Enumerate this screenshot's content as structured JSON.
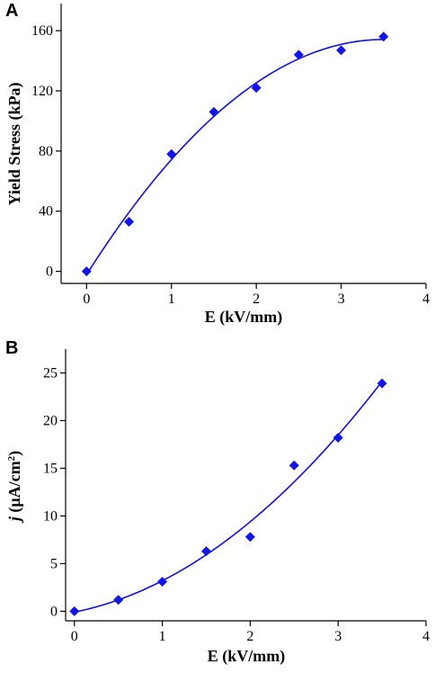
{
  "chart_data": [
    {
      "type": "scatter",
      "panel_label": "A",
      "title": "",
      "xlabel": "E (kV/mm)",
      "ylabel": "Yield Stress (kPa)",
      "xlim": [
        -0.3,
        4
      ],
      "ylim": [
        -8,
        178
      ],
      "x_ticks": [
        0,
        1,
        2,
        3,
        4
      ],
      "y_ticks": [
        0,
        40,
        80,
        120,
        160
      ],
      "series": [
        {
          "x": [
            0,
            0.5,
            1,
            1.5,
            2,
            2.5,
            3,
            3.5
          ],
          "y": [
            0,
            33,
            78,
            106,
            122,
            144,
            147,
            156
          ],
          "marker": "diamond",
          "color": "#1414e6"
        }
      ],
      "fit_line": true,
      "grid": false
    },
    {
      "type": "scatter",
      "panel_label": "B",
      "title": "",
      "xlabel": "E (kV/mm)",
      "ylabel": "j (μA/cm²)",
      "ylabel_parts": {
        "italic": "j",
        "main": " (μA/cm",
        "sup": "2",
        "close": ")"
      },
      "xlim": [
        -0.1,
        4
      ],
      "ylim": [
        -1,
        27.5
      ],
      "x_ticks": [
        0,
        1,
        2,
        3,
        4
      ],
      "y_ticks": [
        0,
        5,
        10,
        15,
        20,
        25
      ],
      "series": [
        {
          "x": [
            0,
            0.5,
            1,
            1.5,
            2,
            2.5,
            3,
            3.5
          ],
          "y": [
            0,
            1.2,
            3.1,
            6.3,
            7.8,
            15.3,
            18.2,
            23.9
          ],
          "marker": "diamond",
          "color": "#1414e6"
        }
      ],
      "fit_line": true,
      "grid": false
    }
  ]
}
